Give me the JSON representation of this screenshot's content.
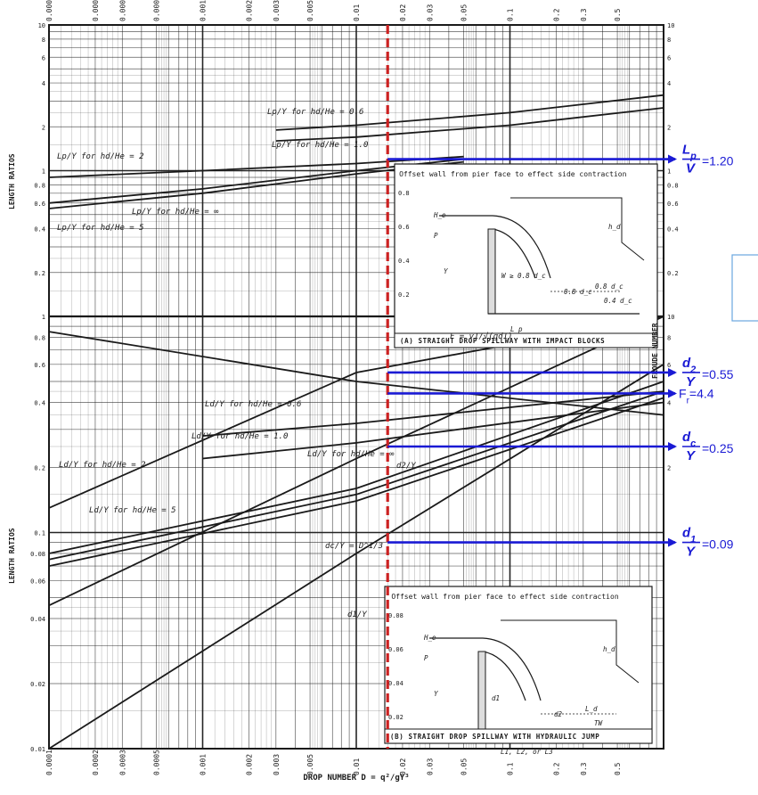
{
  "chart_data": {
    "type": "line",
    "xlabel": "DROP NUMBER D = q²/gY³",
    "x_scale": "log",
    "xlim": [
      0.0001,
      1
    ],
    "x_ticks": [
      "0.0001",
      "0.0002",
      "0.0003",
      "0.0005",
      "0.001",
      "0.002",
      "0.003",
      "0.005",
      "0.01",
      "0.02",
      "0.03",
      "0.05",
      "0.1",
      "0.2",
      "0.3",
      "0.5"
    ],
    "panels": [
      {
        "name": "A",
        "ylabel": "LENGTH RATIOS",
        "y_scale": "log",
        "ylim": [
          0.1,
          10
        ],
        "y_ticks": [
          "10",
          "8",
          "6",
          "4",
          "2",
          "1",
          "0.8",
          "0.6",
          "0.4",
          "0.2"
        ],
        "caption": "(A) STRAIGHT DROP SPILLWAY WITH IMPACT BLOCKS",
        "inset_note": "Offset wall from pier face to effect side contraction",
        "inset_labels": [
          "H_e",
          "P",
          "Y",
          "h_d",
          "W ≥ 0.8 d_c",
          "0.8 d_c",
          "0.4 d_c",
          "0.8 d_c",
          "L_p",
          "L_B ≥ L_p + 2.55 d_c"
        ],
        "inset_ticks": [
          "0.8",
          "0.6",
          "0.4",
          "0.2"
        ],
        "curves": [
          {
            "label": "Lp/Y for hd/He = 0.6",
            "x": [
              0.003,
              0.01,
              0.1,
              1
            ],
            "y": [
              1.9,
              2.05,
              2.5,
              3.3
            ]
          },
          {
            "label": "Lp/Y for hd/He = 1.0",
            "x": [
              0.003,
              0.01,
              0.1,
              1
            ],
            "y": [
              1.6,
              1.7,
              2.05,
              2.7
            ]
          },
          {
            "label": "Lp/Y for hd/He = 2",
            "x": [
              0.0001,
              0.001,
              0.01,
              0.05
            ],
            "y": [
              0.9,
              1.0,
              1.12,
              1.25
            ]
          },
          {
            "label": "Lp/Y for hd/He = ∞",
            "x": [
              0.0001,
              0.001,
              0.01,
              0.05
            ],
            "y": [
              0.6,
              0.75,
              1.0,
              1.2
            ]
          },
          {
            "label": "Lp/Y for hd/He = 5",
            "x": [
              0.0001,
              0.001,
              0.01,
              0.05
            ],
            "y": [
              0.55,
              0.7,
              0.95,
              1.15
            ]
          }
        ]
      },
      {
        "name": "B",
        "ylabel": "LENGTH RATIOS",
        "y2label": "FROUDE NUMBER",
        "y_scale": "log",
        "ylim": [
          0.01,
          1
        ],
        "y_ticks": [
          "1",
          "0.8",
          "0.6",
          "0.4",
          "0.2",
          "0.1",
          "0.08",
          "0.06",
          "0.04",
          "0.02",
          "0.01"
        ],
        "y2_ticks": [
          "10",
          "8",
          "6",
          "4",
          "2"
        ],
        "caption": "(B) STRAIGHT DROP SPILLWAY WITH HYDRAULIC JUMP",
        "inset_note": "Offset wall from pier face to effect side contraction",
        "inset_labels": [
          "H_e",
          "P",
          "Y",
          "h_d",
          "d1",
          "d2",
          "TW",
          "L_d",
          "L1, L2, or L3"
        ],
        "inset_ticks": [
          "0.08",
          "0.06",
          "0.04",
          "0.02"
        ],
        "curves": [
          {
            "label": "F = v1/√(gd1)",
            "x": [
              0.0001,
              0.01,
              1
            ],
            "y": [
              8.5,
              5.0,
              3.5
            ]
          },
          {
            "label": "Ld/Y for hd/He = 0.6",
            "x": [
              0.001,
              0.01,
              1
            ],
            "y": [
              0.28,
              0.32,
              0.45
            ]
          },
          {
            "label": "Ld/Y for hd/He = 1.0",
            "x": [
              0.001,
              0.01,
              1
            ],
            "y": [
              0.22,
              0.26,
              0.4
            ]
          },
          {
            "label": "Ld/Y for hd/He = ∞",
            "x": [
              0.0001,
              0.01,
              1
            ],
            "y": [
              0.08,
              0.16,
              0.5
            ]
          },
          {
            "label": "Ld/Y for hd/He = 2",
            "x": [
              0.0001,
              0.01,
              1
            ],
            "y": [
              0.075,
              0.15,
              0.45
            ]
          },
          {
            "label": "Ld/Y for hd/He = 5",
            "x": [
              0.0001,
              0.01,
              1
            ],
            "y": [
              0.07,
              0.14,
              0.42
            ]
          },
          {
            "label": "d2/Y",
            "x": [
              0.0001,
              0.01,
              1
            ],
            "y": [
              0.13,
              0.55,
              1.0
            ]
          },
          {
            "label": "dc/Y = D^1/3",
            "x": [
              0.0001,
              0.01,
              1
            ],
            "y": [
              0.046,
              0.22,
              1.0
            ]
          },
          {
            "label": "d1/Y",
            "x": [
              0.0001,
              0.01,
              1
            ],
            "y": [
              0.01,
              0.08,
              0.6
            ]
          }
        ]
      }
    ],
    "marker": {
      "x": 0.016,
      "color": "#cc2222",
      "style": "dashed"
    },
    "readouts": [
      {
        "panel": "A",
        "y": 1.2,
        "num": "Lp",
        "den": "V",
        "value": "=1.20"
      },
      {
        "panel": "B",
        "y": 4.4,
        "text": "Fr=4.4",
        "main": "F",
        "sub": "r",
        "value": "=4.4"
      },
      {
        "panel": "B",
        "y": 0.55,
        "num": "d2",
        "den": "Y",
        "value": "=0.55"
      },
      {
        "panel": "B",
        "y": 0.25,
        "num": "dc",
        "den": "Y",
        "value": "=0.25"
      },
      {
        "panel": "B",
        "y": 0.09,
        "num": "d1",
        "den": "Y",
        "value": "=0.09"
      }
    ],
    "arrow_color": "#1a1ad4",
    "line_color": "#1a1a1a",
    "grid": true
  }
}
